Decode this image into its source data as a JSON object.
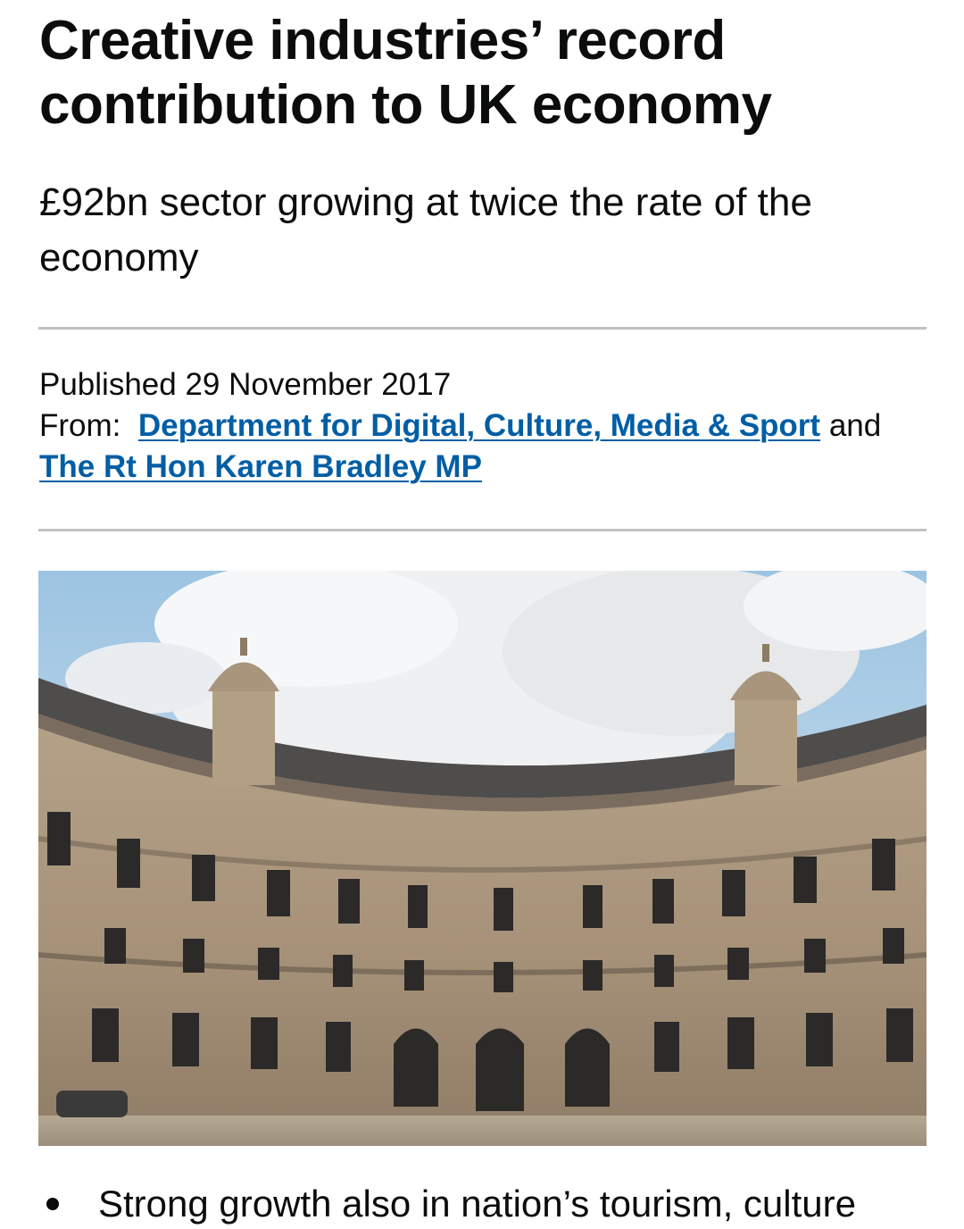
{
  "article": {
    "title": "Creative industries’ record contribution to UK economy",
    "summary": "£92bn sector growing at twice the rate of the economy"
  },
  "metadata": {
    "published_prefix": "Published",
    "published_date": "29 November 2017",
    "from_label": "From:",
    "department_link": "Department for Digital, Culture, Media & Sport",
    "joiner": "and",
    "minister_link": "The Rt Hon Karen Bradley MP"
  },
  "content": {
    "bullet_1": "Strong growth also in nation’s tourism, culture"
  },
  "colors": {
    "link": "#005ea5",
    "text": "#0b0c0c",
    "divider": "#bfc1c3"
  }
}
